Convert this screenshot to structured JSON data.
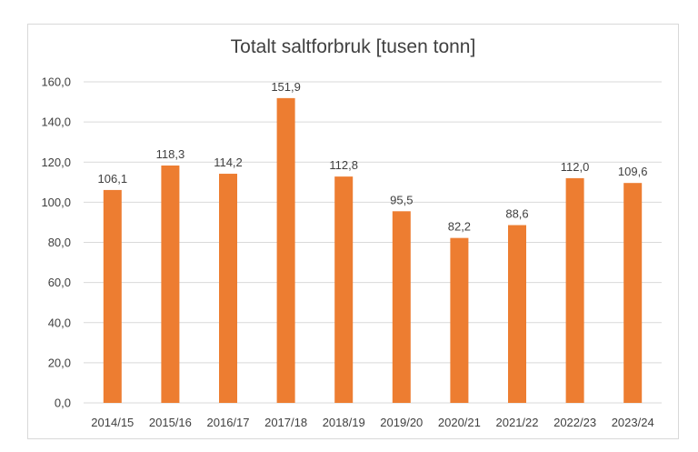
{
  "chart_data": {
    "type": "bar",
    "title": "Totalt saltforbruk [tusen tonn]",
    "xlabel": "",
    "ylabel": "",
    "categories": [
      "2014/15",
      "2015/16",
      "2016/17",
      "2017/18",
      "2018/19",
      "2019/20",
      "2020/21",
      "2021/22",
      "2022/23",
      "2023/24"
    ],
    "values": [
      106.1,
      118.3,
      114.2,
      151.9,
      112.8,
      95.5,
      82.2,
      88.6,
      112.0,
      109.6
    ],
    "data_labels": [
      "106,1",
      "118,3",
      "114,2",
      "151,9",
      "112,8",
      "95,5",
      "82,2",
      "88,6",
      "112,0",
      "109,6"
    ],
    "ylim": [
      0,
      160
    ],
    "yticks": [
      "0,0",
      "20,0",
      "40,0",
      "60,0",
      "80,0",
      "100,0",
      "120,0",
      "140,0",
      "160,0"
    ],
    "grid": true,
    "legend": "none",
    "bar_color": "#ed7d31",
    "grid_color": "#d9d9d9"
  }
}
